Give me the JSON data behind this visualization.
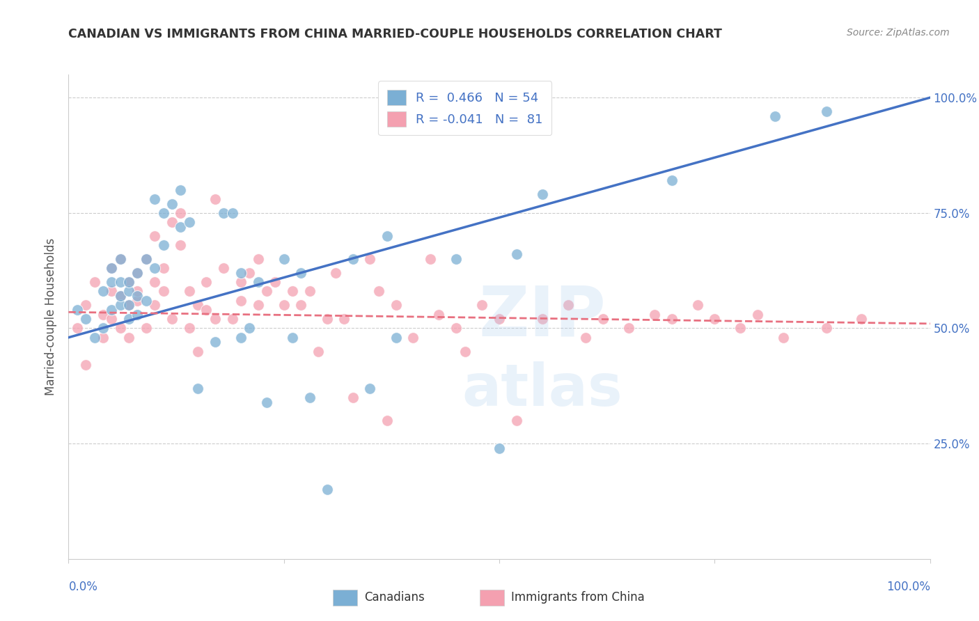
{
  "title": "CANADIAN VS IMMIGRANTS FROM CHINA MARRIED-COUPLE HOUSEHOLDS CORRELATION CHART",
  "source": "Source: ZipAtlas.com",
  "ylabel": "Married-couple Households",
  "xlim": [
    0,
    1.0
  ],
  "ylim": [
    0,
    1.05
  ],
  "canadians_color": "#7BAFD4",
  "immigrants_color": "#F4A0B0",
  "canadians_R": 0.466,
  "canadians_N": 54,
  "immigrants_R": -0.041,
  "immigrants_N": 81,
  "canadians_line_color": "#4472C4",
  "immigrants_line_color": "#E87080",
  "canadians_x": [
    0.01,
    0.02,
    0.03,
    0.04,
    0.04,
    0.05,
    0.05,
    0.05,
    0.06,
    0.06,
    0.06,
    0.06,
    0.07,
    0.07,
    0.07,
    0.07,
    0.08,
    0.08,
    0.08,
    0.09,
    0.09,
    0.1,
    0.1,
    0.11,
    0.11,
    0.12,
    0.13,
    0.13,
    0.14,
    0.15,
    0.17,
    0.18,
    0.19,
    0.2,
    0.2,
    0.21,
    0.22,
    0.23,
    0.25,
    0.26,
    0.27,
    0.28,
    0.3,
    0.33,
    0.35,
    0.37,
    0.38,
    0.45,
    0.5,
    0.52,
    0.55,
    0.7,
    0.82,
    0.88
  ],
  "canadians_y": [
    0.54,
    0.52,
    0.48,
    0.58,
    0.5,
    0.54,
    0.6,
    0.63,
    0.55,
    0.57,
    0.6,
    0.65,
    0.52,
    0.55,
    0.58,
    0.6,
    0.53,
    0.57,
    0.62,
    0.56,
    0.65,
    0.63,
    0.78,
    0.68,
    0.75,
    0.77,
    0.72,
    0.8,
    0.73,
    0.37,
    0.47,
    0.75,
    0.75,
    0.62,
    0.48,
    0.5,
    0.6,
    0.34,
    0.65,
    0.48,
    0.62,
    0.35,
    0.15,
    0.65,
    0.37,
    0.7,
    0.48,
    0.65,
    0.24,
    0.66,
    0.79,
    0.82,
    0.96,
    0.97
  ],
  "immigrants_x": [
    0.01,
    0.02,
    0.02,
    0.03,
    0.04,
    0.04,
    0.05,
    0.05,
    0.05,
    0.06,
    0.06,
    0.06,
    0.07,
    0.07,
    0.07,
    0.08,
    0.08,
    0.08,
    0.09,
    0.09,
    0.1,
    0.1,
    0.1,
    0.11,
    0.11,
    0.12,
    0.12,
    0.13,
    0.13,
    0.14,
    0.14,
    0.15,
    0.15,
    0.16,
    0.16,
    0.17,
    0.17,
    0.18,
    0.19,
    0.2,
    0.2,
    0.21,
    0.22,
    0.22,
    0.23,
    0.24,
    0.25,
    0.26,
    0.27,
    0.28,
    0.29,
    0.3,
    0.31,
    0.32,
    0.33,
    0.35,
    0.36,
    0.37,
    0.38,
    0.4,
    0.42,
    0.43,
    0.45,
    0.46,
    0.48,
    0.5,
    0.52,
    0.55,
    0.58,
    0.6,
    0.62,
    0.65,
    0.68,
    0.7,
    0.73,
    0.75,
    0.78,
    0.8,
    0.83,
    0.88,
    0.92
  ],
  "immigrants_y": [
    0.5,
    0.42,
    0.55,
    0.6,
    0.53,
    0.48,
    0.58,
    0.63,
    0.52,
    0.57,
    0.5,
    0.65,
    0.6,
    0.55,
    0.48,
    0.56,
    0.62,
    0.58,
    0.5,
    0.65,
    0.55,
    0.6,
    0.7,
    0.63,
    0.58,
    0.52,
    0.73,
    0.68,
    0.75,
    0.58,
    0.5,
    0.55,
    0.45,
    0.6,
    0.54,
    0.78,
    0.52,
    0.63,
    0.52,
    0.6,
    0.56,
    0.62,
    0.55,
    0.65,
    0.58,
    0.6,
    0.55,
    0.58,
    0.55,
    0.58,
    0.45,
    0.52,
    0.62,
    0.52,
    0.35,
    0.65,
    0.58,
    0.3,
    0.55,
    0.48,
    0.65,
    0.53,
    0.5,
    0.45,
    0.55,
    0.52,
    0.3,
    0.52,
    0.55,
    0.48,
    0.52,
    0.5,
    0.53,
    0.52,
    0.55,
    0.52,
    0.5,
    0.53,
    0.48,
    0.5,
    0.52
  ],
  "can_line_x0": 0.0,
  "can_line_x1": 1.0,
  "can_line_y0": 0.48,
  "can_line_y1": 1.0,
  "imm_line_x0": 0.0,
  "imm_line_x1": 1.0,
  "imm_line_y0": 0.535,
  "imm_line_y1": 0.51
}
